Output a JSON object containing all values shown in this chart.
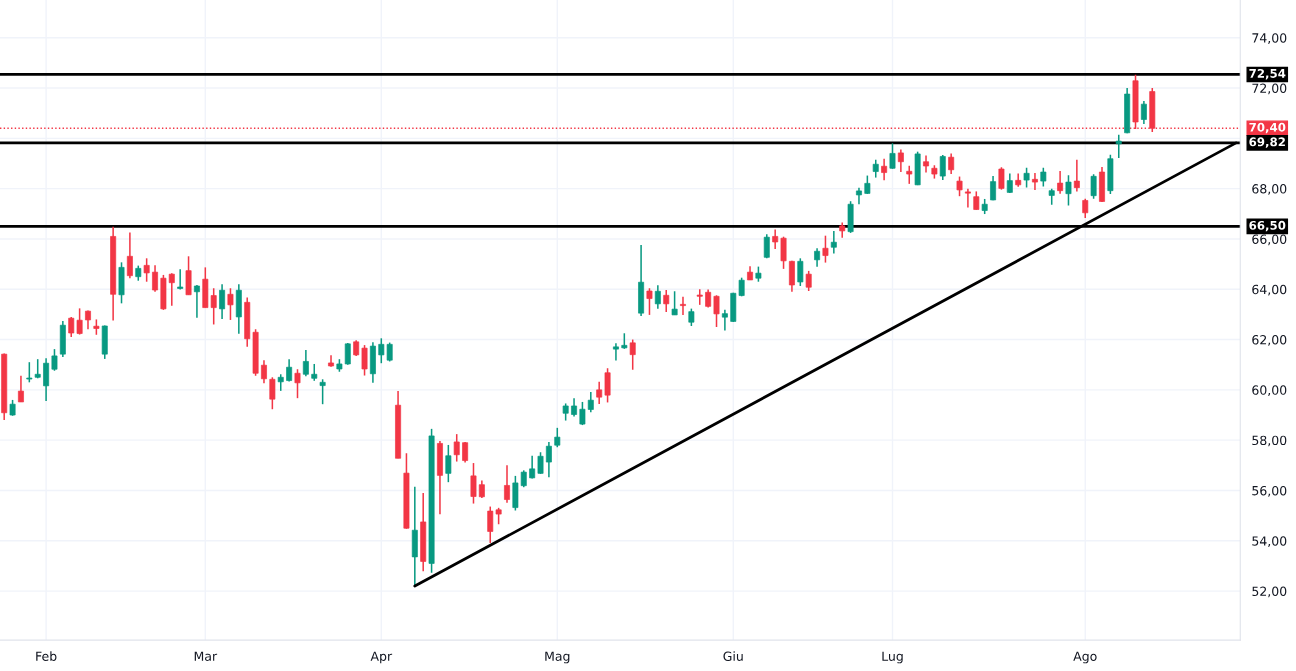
{
  "chart_data": {
    "type": "candlestick",
    "categories": [
      null,
      null,
      null,
      null,
      null,
      "Feb",
      null,
      null,
      null,
      null,
      null,
      null,
      null,
      null,
      null,
      null,
      null,
      null,
      null,
      null,
      null,
      null,
      null,
      null,
      "Mar",
      null,
      null,
      null,
      null,
      null,
      null,
      null,
      null,
      null,
      null,
      null,
      null,
      null,
      null,
      null,
      null,
      null,
      null,
      null,
      null,
      "Apr",
      null,
      null,
      null,
      null,
      null,
      null,
      null,
      null,
      null,
      null,
      null,
      null,
      null,
      null,
      null,
      null,
      null,
      null,
      null,
      null,
      "Mag",
      null,
      null,
      null,
      null,
      null,
      null,
      null,
      null,
      null,
      null,
      null,
      null,
      null,
      null,
      null,
      null,
      null,
      null,
      null,
      null,
      "Giu",
      null,
      null,
      null,
      null,
      null,
      null,
      null,
      null,
      null,
      null,
      null,
      null,
      null,
      null,
      null,
      null,
      null,
      null,
      "Lug",
      null,
      null,
      null,
      null,
      null,
      null,
      null,
      null,
      null,
      null,
      null,
      null,
      null,
      null,
      null,
      null,
      null,
      null,
      null,
      null,
      null,
      null,
      "Ago",
      null,
      null,
      null,
      null,
      null,
      null,
      null,
      null,
      null,
      null,
      null,
      null,
      null,
      null,
      null,
      null,
      null,
      null
    ],
    "ohlc": [
      [
        61.42,
        61.45,
        58.8,
        59.09
      ],
      [
        59.0,
        59.6,
        58.97,
        59.43
      ],
      [
        59.95,
        60.56,
        59.52,
        59.52
      ],
      [
        60.43,
        61.1,
        60.3,
        60.47
      ],
      [
        60.5,
        61.22,
        60.46,
        60.62
      ],
      [
        60.16,
        61.26,
        59.56,
        61.06
      ],
      [
        60.82,
        61.62,
        60.76,
        61.35
      ],
      [
        61.42,
        62.74,
        61.31,
        62.57
      ],
      [
        62.85,
        62.9,
        62.1,
        62.26
      ],
      [
        62.77,
        63.24,
        62.2,
        62.24
      ],
      [
        63.13,
        63.16,
        62.41,
        62.78
      ],
      [
        62.53,
        62.8,
        62.19,
        62.44
      ],
      [
        61.42,
        62.56,
        61.23,
        62.54
      ],
      [
        66.1,
        66.49,
        62.76,
        63.8
      ],
      [
        63.78,
        65.07,
        63.44,
        64.87
      ],
      [
        65.31,
        66.26,
        64.44,
        64.54
      ],
      [
        64.5,
        64.94,
        64.34,
        64.83
      ],
      [
        64.95,
        65.23,
        64.3,
        64.65
      ],
      [
        64.68,
        64.95,
        63.9,
        63.97
      ],
      [
        64.44,
        64.57,
        63.18,
        63.22
      ],
      [
        64.6,
        64.64,
        63.34,
        64.26
      ],
      [
        64.03,
        64.8,
        63.99,
        64.09
      ],
      [
        64.74,
        65.31,
        63.78,
        63.78
      ],
      [
        63.9,
        64.17,
        62.87,
        64.13
      ],
      [
        64.4,
        64.87,
        63.27,
        63.27
      ],
      [
        63.75,
        64.04,
        62.6,
        63.27
      ],
      [
        63.22,
        64.2,
        62.82,
        63.96
      ],
      [
        63.8,
        64.04,
        62.78,
        63.38
      ],
      [
        62.9,
        64.2,
        62.23,
        63.96
      ],
      [
        63.48,
        63.67,
        61.71,
        62.03
      ],
      [
        62.29,
        62.41,
        60.56,
        60.66
      ],
      [
        60.98,
        61.18,
        60.26,
        60.44
      ],
      [
        60.42,
        60.5,
        59.23,
        59.63
      ],
      [
        60.32,
        60.62,
        59.96,
        60.5
      ],
      [
        60.37,
        61.22,
        60.33,
        60.9
      ],
      [
        60.66,
        60.82,
        59.67,
        60.28
      ],
      [
        60.62,
        61.58,
        60.54,
        61.13
      ],
      [
        60.46,
        61.03,
        60.36,
        60.62
      ],
      [
        60.17,
        60.42,
        59.43,
        60.3
      ],
      [
        61.07,
        61.38,
        60.92,
        60.95
      ],
      [
        60.83,
        61.22,
        60.72,
        61.03
      ],
      [
        61.03,
        61.86,
        61.0,
        61.83
      ],
      [
        61.91,
        61.97,
        61.35,
        61.39
      ],
      [
        61.66,
        61.78,
        60.57,
        60.83
      ],
      [
        60.64,
        61.89,
        60.28,
        61.74
      ],
      [
        61.39,
        62.05,
        61.06,
        61.81
      ],
      [
        61.18,
        61.88,
        61.13,
        61.81
      ],
      [
        59.39,
        59.95,
        57.28,
        57.28
      ],
      [
        56.69,
        57.48,
        54.48,
        54.5
      ],
      [
        53.36,
        56.15,
        52.19,
        54.42
      ],
      [
        54.75,
        55.9,
        52.79,
        53.18
      ],
      [
        53.1,
        58.45,
        52.73,
        58.17
      ],
      [
        57.87,
        57.97,
        55.05,
        56.6
      ],
      [
        56.68,
        57.81,
        56.33,
        57.38
      ],
      [
        57.93,
        58.24,
        57.15,
        57.42
      ],
      [
        57.9,
        57.93,
        57.11,
        57.19
      ],
      [
        56.58,
        57.09,
        55.48,
        55.76
      ],
      [
        56.23,
        56.4,
        55.7,
        55.75
      ],
      [
        55.18,
        55.36,
        53.91,
        54.37
      ],
      [
        55.23,
        55.31,
        54.66,
        55.06
      ],
      [
        56.2,
        57.0,
        55.51,
        55.64
      ],
      [
        55.32,
        56.58,
        55.2,
        56.3
      ],
      [
        56.19,
        56.8,
        56.13,
        56.73
      ],
      [
        56.5,
        57.38,
        56.48,
        56.86
      ],
      [
        56.68,
        57.52,
        56.66,
        57.36
      ],
      [
        57.13,
        57.93,
        56.53,
        57.76
      ],
      [
        57.8,
        58.49,
        57.72,
        58.12
      ],
      [
        59.07,
        59.46,
        58.78,
        59.36
      ],
      [
        59.02,
        59.67,
        58.94,
        59.36
      ],
      [
        58.64,
        59.52,
        58.6,
        59.23
      ],
      [
        59.22,
        59.92,
        59.11,
        59.59
      ],
      [
        60.0,
        60.32,
        59.44,
        59.71
      ],
      [
        60.68,
        60.86,
        59.5,
        59.79
      ],
      [
        61.62,
        61.85,
        61.17,
        61.71
      ],
      [
        61.67,
        62.25,
        61.63,
        61.77
      ],
      [
        61.87,
        62.0,
        60.8,
        61.4
      ],
      [
        63.05,
        65.76,
        62.94,
        64.28
      ],
      [
        63.93,
        64.04,
        62.98,
        63.63
      ],
      [
        63.42,
        64.16,
        63.22,
        63.92
      ],
      [
        63.76,
        63.97,
        63.1,
        63.42
      ],
      [
        62.98,
        63.92,
        62.98,
        63.21
      ],
      [
        63.4,
        63.7,
        62.98,
        63.35
      ],
      [
        62.69,
        63.23,
        62.54,
        63.11
      ],
      [
        63.77,
        64.0,
        63.38,
        63.72
      ],
      [
        63.88,
        63.99,
        63.27,
        63.32
      ],
      [
        63.72,
        63.76,
        62.5,
        63.02
      ],
      [
        62.89,
        63.19,
        62.36,
        63.03
      ],
      [
        62.72,
        63.86,
        62.7,
        63.84
      ],
      [
        63.75,
        64.46,
        63.72,
        64.36
      ],
      [
        64.68,
        64.91,
        64.37,
        64.37
      ],
      [
        64.44,
        64.9,
        64.3,
        64.64
      ],
      [
        65.27,
        66.19,
        65.23,
        66.07
      ],
      [
        66.1,
        66.38,
        65.6,
        65.88
      ],
      [
        66.03,
        66.09,
        64.81,
        65.13
      ],
      [
        65.11,
        65.13,
        63.9,
        64.17
      ],
      [
        64.29,
        65.23,
        64.13,
        65.11
      ],
      [
        64.6,
        64.73,
        63.93,
        64.08
      ],
      [
        65.17,
        65.63,
        64.89,
        65.51
      ],
      [
        65.63,
        66.13,
        65.06,
        65.34
      ],
      [
        65.67,
        66.32,
        65.42,
        65.87
      ],
      [
        66.52,
        66.65,
        66.05,
        66.32
      ],
      [
        66.29,
        67.5,
        66.24,
        67.38
      ],
      [
        67.75,
        68.04,
        67.38,
        67.91
      ],
      [
        67.81,
        68.52,
        67.79,
        68.21
      ],
      [
        68.68,
        69.15,
        68.44,
        68.97
      ],
      [
        68.89,
        69.19,
        68.33,
        68.64
      ],
      [
        68.81,
        69.8,
        68.79,
        69.4
      ],
      [
        69.42,
        69.56,
        68.66,
        69.07
      ],
      [
        68.69,
        68.91,
        68.19,
        68.58
      ],
      [
        68.15,
        69.47,
        68.14,
        69.38
      ],
      [
        69.07,
        69.32,
        68.64,
        68.9
      ],
      [
        68.81,
        68.93,
        68.4,
        68.58
      ],
      [
        68.5,
        69.34,
        68.34,
        69.28
      ],
      [
        69.25,
        69.4,
        68.58,
        68.75
      ],
      [
        68.3,
        68.48,
        67.7,
        67.95
      ],
      [
        67.87,
        68.0,
        67.25,
        67.82
      ],
      [
        67.68,
        67.89,
        67.16,
        67.17
      ],
      [
        67.13,
        67.59,
        66.99,
        67.38
      ],
      [
        67.55,
        68.5,
        67.54,
        68.28
      ],
      [
        68.78,
        68.85,
        67.96,
        68.01
      ],
      [
        67.85,
        68.6,
        67.83,
        68.32
      ],
      [
        68.33,
        68.6,
        68.08,
        68.15
      ],
      [
        68.34,
        68.83,
        68.05,
        68.61
      ],
      [
        68.37,
        68.62,
        67.95,
        68.26
      ],
      [
        68.3,
        68.83,
        68.09,
        68.66
      ],
      [
        67.73,
        68.0,
        67.36,
        67.92
      ],
      [
        68.22,
        68.7,
        67.8,
        67.92
      ],
      [
        67.8,
        68.53,
        67.33,
        68.26
      ],
      [
        68.3,
        69.15,
        67.89,
        68.04
      ],
      [
        67.53,
        67.6,
        66.83,
        67.04
      ],
      [
        67.72,
        68.57,
        67.6,
        68.49
      ],
      [
        68.66,
        68.86,
        67.47,
        67.49
      ],
      [
        67.92,
        69.35,
        67.79,
        69.19
      ],
      [
        69.78,
        70.14,
        69.22,
        69.89
      ],
      [
        70.22,
        72.0,
        70.2,
        71.76
      ],
      [
        72.29,
        72.53,
        70.37,
        70.65
      ],
      [
        70.75,
        71.48,
        70.57,
        71.36
      ],
      [
        71.86,
        72.0,
        70.25,
        70.4
      ],
      null,
      null,
      null,
      null,
      null,
      null,
      null,
      null,
      null,
      null
    ],
    "colors": [
      "#f23645",
      "#089981",
      "#f23645",
      "#089981",
      "#089981",
      "#089981",
      "#089981",
      "#089981",
      "#f23645",
      "#f23645",
      "#f23645",
      "#f23645",
      "#089981",
      "#f23645",
      "#089981",
      "#f23645",
      "#089981",
      "#f23645",
      "#f23645",
      "#f23645",
      "#f23645",
      "#089981",
      "#f23645",
      "#089981",
      "#f23645",
      "#f23645",
      "#089981",
      "#f23645",
      "#089981",
      "#f23645",
      "#f23645",
      "#f23645",
      "#f23645",
      "#089981",
      "#089981",
      "#f23645",
      "#089981",
      "#089981",
      "#089981",
      "#f23645",
      "#089981",
      "#089981",
      "#f23645",
      "#f23645",
      "#089981",
      "#089981",
      "#089981",
      "#f23645",
      "#f23645",
      "#089981",
      "#f23645",
      "#089981",
      "#f23645",
      "#089981",
      "#f23645",
      "#f23645",
      "#f23645",
      "#f23645",
      "#f23645",
      "#f23645",
      "#f23645",
      "#089981",
      "#089981",
      "#089981",
      "#089981",
      "#089981",
      "#089981",
      "#089981",
      "#089981",
      "#089981",
      "#089981",
      "#f23645",
      "#f23645",
      "#089981",
      "#089981",
      "#f23645",
      "#089981",
      "#f23645",
      "#089981",
      "#f23645",
      "#089981",
      "#f23645",
      "#089981",
      "#f23645",
      "#f23645",
      "#f23645",
      "#089981",
      "#089981",
      "#089981",
      "#f23645",
      "#089981",
      "#089981",
      "#f23645",
      "#f23645",
      "#f23645",
      "#089981",
      "#f23645",
      "#089981",
      "#f23645",
      "#089981",
      "#f23645",
      "#089981",
      "#089981",
      "#089981",
      "#089981",
      "#f23645",
      "#089981",
      "#f23645",
      "#f23645",
      "#089981",
      "#f23645",
      "#f23645",
      "#089981",
      "#f23645",
      "#f23645",
      "#f23645",
      "#f23645",
      "#089981",
      "#089981",
      "#f23645",
      "#089981",
      "#f23645",
      "#089981",
      "#f23645",
      "#089981",
      "#089981",
      "#f23645",
      "#089981",
      "#f23645",
      "#f23645",
      "#089981",
      "#f23645",
      "#089981",
      "#089981",
      "#089981",
      "#f23645",
      "#089981",
      "#f23645",
      null,
      null,
      null,
      null,
      null,
      null,
      null,
      null,
      null,
      null
    ],
    "series": [
      {
        "type": "line",
        "values": [
          null,
          null,
          null,
          null,
          null,
          null,
          null,
          null,
          null,
          null,
          null,
          null,
          null,
          null,
          null,
          null,
          null,
          null,
          null,
          null,
          null,
          null,
          null,
          null,
          null,
          null,
          null,
          null,
          null,
          null,
          null,
          null,
          null,
          null,
          null,
          null,
          null,
          null,
          null,
          null,
          null,
          null,
          null,
          null,
          null,
          null,
          null,
          null,
          null,
          52.2,
          null,
          null,
          null,
          null,
          null,
          null,
          null,
          null,
          null,
          null,
          null,
          null,
          null,
          null,
          null,
          null,
          null,
          null,
          null,
          null,
          null,
          null,
          null,
          null,
          null,
          null,
          null,
          null,
          null,
          null,
          null,
          null,
          null,
          null,
          null,
          null,
          null,
          null,
          null,
          null,
          null,
          null,
          null,
          null,
          null,
          null,
          null,
          null,
          null,
          null,
          null,
          null,
          null,
          null,
          null,
          null,
          null,
          null,
          null,
          null,
          null,
          null,
          null,
          null,
          null,
          null,
          null,
          null,
          null,
          null,
          null,
          null,
          null,
          null,
          null,
          null,
          null,
          null,
          null,
          null,
          null,
          null,
          null,
          null,
          null,
          null,
          null,
          null,
          null,
          null,
          null,
          null,
          null,
          null,
          null,
          null,
          null,
          69.82
        ],
        "color": "#000000"
      }
    ],
    "ylim": [
      50.05,
      75.5
    ],
    "yticks": [
      {
        "value": 52,
        "label": "52,00"
      },
      {
        "value": 54,
        "label": "54,00"
      },
      {
        "value": 56,
        "label": "56,00"
      },
      {
        "value": 58,
        "label": "58,00"
      },
      {
        "value": 60,
        "label": "60,00"
      },
      {
        "value": 62,
        "label": "62,00"
      },
      {
        "value": 64,
        "label": "64,00"
      },
      {
        "value": 66,
        "label": "66,00"
      },
      {
        "value": 68,
        "label": "68,00"
      },
      {
        "value": 70,
        "label": null
      },
      {
        "value": 72,
        "label": "72,00"
      },
      {
        "value": 74,
        "label": "74,00"
      }
    ],
    "ref_lines": [
      {
        "axis": "y",
        "value": 72.54,
        "label": "72,54",
        "color": "#000000",
        "line_style": "solid"
      },
      {
        "axis": "y",
        "value": 70.4,
        "label": "70,40",
        "color": "#f23645",
        "line_style": "dotted"
      },
      {
        "axis": "y",
        "value": 69.82,
        "label": "69,82",
        "color": "#000000",
        "line_style": "solid"
      },
      {
        "axis": "y",
        "value": 66.5,
        "label": "66,50",
        "color": "#000000",
        "line_style": "solid"
      }
    ],
    "grid": true
  }
}
